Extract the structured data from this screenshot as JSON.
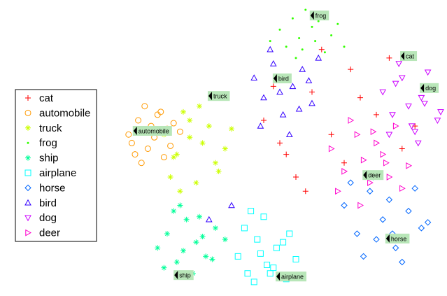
{
  "chart_data": {
    "type": "scatter",
    "xlim": [
      0,
      100
    ],
    "ylim": [
      0,
      100
    ],
    "series": [
      {
        "name": "cat",
        "color": "#ff0000",
        "marker": "plus",
        "x": [
          45,
          52,
          60,
          66,
          72,
          80,
          88,
          55,
          63,
          48,
          70,
          92,
          58,
          75,
          84,
          50
        ],
        "values": [
          60,
          48,
          70,
          55,
          78,
          62,
          50,
          40,
          85,
          72,
          45,
          58,
          35,
          68,
          82,
          52
        ]
      },
      {
        "name": "automobile",
        "color": "#ff9900",
        "marker": "circle",
        "x": [
          3,
          6,
          9,
          12,
          15,
          5,
          8,
          11,
          14,
          17,
          4,
          10,
          13,
          7,
          16,
          19
        ],
        "values": [
          55,
          60,
          50,
          62,
          57,
          48,
          65,
          54,
          47,
          59,
          52,
          58,
          63,
          45,
          51,
          56
        ]
      },
      {
        "name": "truck",
        "color": "#ccff00",
        "marker": "star",
        "x": [
          14,
          18,
          22,
          26,
          30,
          16,
          20,
          24,
          28,
          33,
          19,
          25,
          31,
          22,
          17,
          35
        ],
        "values": [
          55,
          48,
          60,
          52,
          45,
          40,
          63,
          38,
          58,
          50,
          35,
          65,
          42,
          54,
          47,
          57
        ]
      },
      {
        "name": "frog",
        "color": "#33ff00",
        "marker": "dot",
        "x": [
          50,
          54,
          58,
          62,
          66,
          70,
          52,
          56,
          60,
          64,
          68,
          47,
          57,
          63,
          61,
          55
        ],
        "values": [
          92,
          96,
          99,
          95,
          90,
          86,
          86,
          89,
          93,
          84,
          94,
          88,
          85,
          97,
          88,
          82
        ]
      },
      {
        "name": "ship",
        "color": "#00ff99",
        "marker": "star",
        "x": [
          12,
          15,
          18,
          21,
          24,
          27,
          30,
          14,
          17,
          20,
          23,
          26,
          29,
          19,
          25,
          33
        ],
        "values": [
          15,
          20,
          10,
          25,
          17,
          12,
          22,
          8,
          28,
          14,
          6,
          19,
          11,
          30,
          26,
          18
        ]
      },
      {
        "name": "airplane",
        "color": "#00ffff",
        "marker": "square",
        "x": [
          37,
          40,
          43,
          46,
          49,
          52,
          55,
          39,
          42,
          45,
          48,
          51,
          44,
          41,
          53,
          47
        ],
        "values": [
          12,
          6,
          18,
          9,
          15,
          4,
          11,
          22,
          3,
          26,
          8,
          17,
          13,
          28,
          20,
          6
        ]
      },
      {
        "name": "horse",
        "color": "#0066ff",
        "marker": "diamond",
        "x": [
          70,
          74,
          78,
          82,
          86,
          90,
          94,
          72,
          76,
          80,
          84,
          88,
          92,
          96,
          79,
          85
        ],
        "values": [
          30,
          20,
          35,
          25,
          15,
          28,
          22,
          38,
          12,
          18,
          32,
          10,
          36,
          24,
          40,
          20
        ]
      },
      {
        "name": "bird",
        "color": "#3300ff",
        "marker": "triangle",
        "x": [
          42,
          45,
          48,
          51,
          54,
          57,
          60,
          44,
          47,
          50,
          53,
          56,
          59,
          35,
          28,
          62
        ],
        "values": [
          75,
          68,
          80,
          62,
          72,
          78,
          66,
          58,
          85,
          70,
          55,
          64,
          74,
          30,
          25,
          82
        ]
      },
      {
        "name": "dog",
        "color": "#cc00ff",
        "marker": "triangle-down",
        "x": [
          82,
          85,
          88,
          91,
          94,
          97,
          100,
          84,
          87,
          90,
          93,
          96,
          99,
          86,
          92,
          95
        ],
        "values": [
          70,
          62,
          75,
          58,
          68,
          72,
          63,
          55,
          80,
          65,
          52,
          77,
          60,
          73,
          56,
          66
        ]
      },
      {
        "name": "deer",
        "color": "#ff00cc",
        "marker": "triangle-right",
        "x": [
          66,
          70,
          74,
          78,
          82,
          86,
          90,
          68,
          72,
          76,
          80,
          84,
          88,
          79,
          75,
          83
        ],
        "values": [
          50,
          42,
          55,
          38,
          48,
          58,
          44,
          35,
          60,
          46,
          52,
          40,
          36,
          56,
          30,
          45
        ]
      }
    ],
    "annotations": [
      {
        "text": "frog",
        "x": 59.3,
        "y": 97
      },
      {
        "text": "cat",
        "x": 87.4,
        "y": 82.7
      },
      {
        "text": "dog",
        "x": 93.5,
        "y": 71.4
      },
      {
        "text": "bird",
        "x": 47.8,
        "y": 74.8
      },
      {
        "text": "truck",
        "x": 27.6,
        "y": 68.6
      },
      {
        "text": "automobile",
        "x": 4.3,
        "y": 56.3
      },
      {
        "text": "deer",
        "x": 75.7,
        "y": 40.7
      },
      {
        "text": "horse",
        "x": 82.8,
        "y": 18.3
      },
      {
        "text": "ship",
        "x": 17,
        "y": 5.4
      },
      {
        "text": "airplane",
        "x": 48.7,
        "y": 4.9
      }
    ]
  }
}
